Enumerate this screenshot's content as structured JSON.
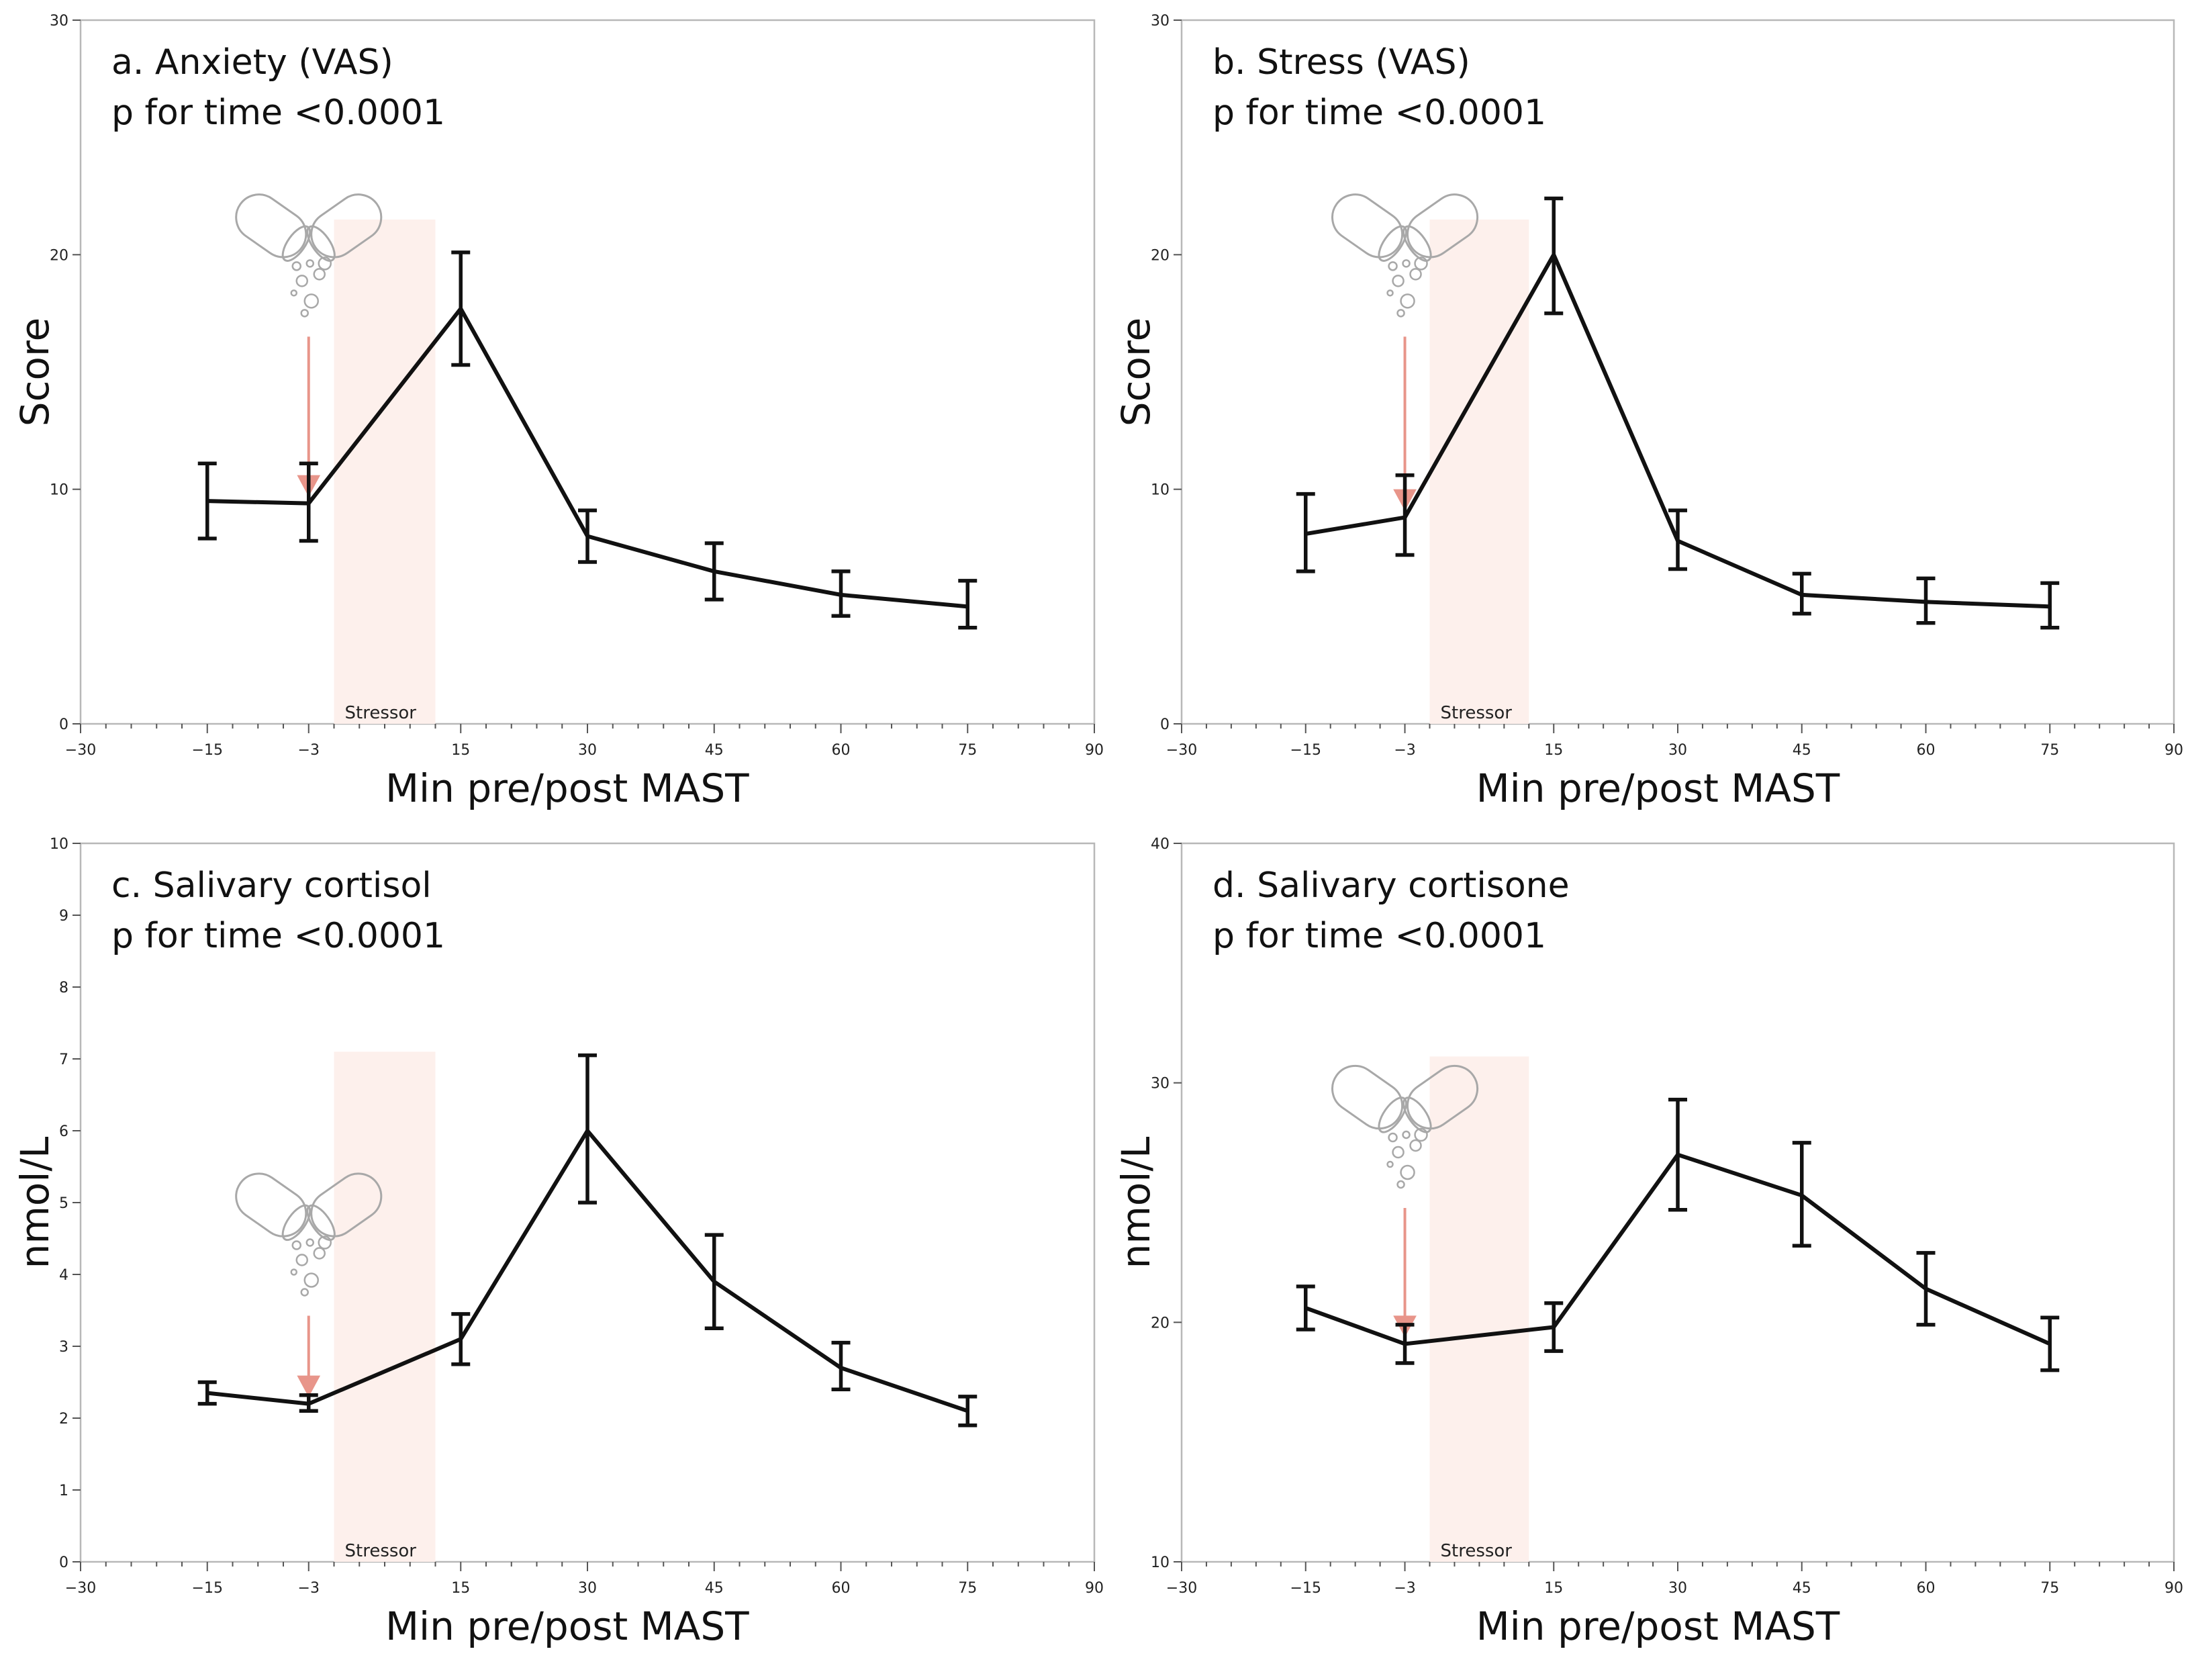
{
  "chart_data": [
    {
      "type": "line",
      "title": "a. Anxiety (VAS)",
      "subtitle": "p for time <0.0001",
      "xlabel": "Min pre/post MAST",
      "ylabel": "Score",
      "xlim": [
        -30,
        90
      ],
      "ylim": [
        0,
        30
      ],
      "xticks": [
        -30,
        -15,
        -3,
        15,
        30,
        45,
        60,
        75,
        90
      ],
      "xtick_labels": [
        "−30",
        "−15",
        "−3",
        "15",
        "30",
        "45",
        "60",
        "75",
        "90"
      ],
      "yticks": [
        0,
        10,
        20,
        30
      ],
      "ytick_labels": [
        "0",
        "10",
        "20",
        "30"
      ],
      "stressor": {
        "label": "Stressor",
        "x_start": 0,
        "x_end": 12,
        "y_top": 21.5
      },
      "intake_marker": {
        "x": -3
      },
      "x": [
        -15,
        -3,
        15,
        30,
        45,
        60,
        75
      ],
      "values": [
        9.5,
        9.4,
        17.7,
        8.0,
        6.5,
        5.5,
        5.0
      ],
      "err_low": [
        7.9,
        7.8,
        15.3,
        6.9,
        5.3,
        4.6,
        4.1
      ],
      "err_high": [
        11.1,
        11.1,
        20.1,
        9.1,
        7.7,
        6.5,
        6.1
      ]
    },
    {
      "type": "line",
      "title": "b. Stress (VAS)",
      "subtitle": "p for time <0.0001",
      "xlabel": "Min pre/post MAST",
      "ylabel": "Score",
      "xlim": [
        -30,
        90
      ],
      "ylim": [
        0,
        30
      ],
      "xticks": [
        -30,
        -15,
        -3,
        15,
        30,
        45,
        60,
        75,
        90
      ],
      "xtick_labels": [
        "−30",
        "−15",
        "−3",
        "15",
        "30",
        "45",
        "60",
        "75",
        "90"
      ],
      "yticks": [
        0,
        10,
        20,
        30
      ],
      "ytick_labels": [
        "0",
        "10",
        "20",
        "30"
      ],
      "stressor": {
        "label": "Stressor",
        "x_start": 0,
        "x_end": 12,
        "y_top": 21.5
      },
      "intake_marker": {
        "x": -3
      },
      "x": [
        -15,
        -3,
        15,
        30,
        45,
        60,
        75
      ],
      "values": [
        8.1,
        8.8,
        20.0,
        7.8,
        5.5,
        5.2,
        5.0
      ],
      "err_low": [
        6.5,
        7.2,
        17.5,
        6.6,
        4.7,
        4.3,
        4.1
      ],
      "err_high": [
        9.8,
        10.6,
        22.4,
        9.1,
        6.4,
        6.2,
        6.0
      ]
    },
    {
      "type": "line",
      "title": "c. Salivary cortisol",
      "subtitle": "p for time <0.0001",
      "xlabel": "Min pre/post MAST",
      "ylabel": "nmol/L",
      "xlim": [
        -30,
        90
      ],
      "ylim": [
        0,
        10
      ],
      "xticks": [
        -30,
        -15,
        -3,
        15,
        30,
        45,
        60,
        75,
        90
      ],
      "xtick_labels": [
        "−30",
        "−15",
        "−3",
        "15",
        "30",
        "45",
        "60",
        "75",
        "90"
      ],
      "yticks": [
        0,
        1,
        2,
        3,
        4,
        5,
        6,
        7,
        8,
        9,
        10
      ],
      "ytick_labels": [
        "0",
        "1",
        "2",
        "3",
        "4",
        "5",
        "6",
        "7",
        "8",
        "9",
        "10"
      ],
      "stressor": {
        "label": "Stressor",
        "x_start": 0,
        "x_end": 12,
        "y_top": 7.1
      },
      "intake_marker": {
        "x": -3
      },
      "x": [
        -15,
        -3,
        15,
        30,
        45,
        60,
        75
      ],
      "values": [
        2.35,
        2.2,
        3.1,
        6.0,
        3.9,
        2.7,
        2.1
      ],
      "err_low": [
        2.2,
        2.1,
        2.75,
        5.0,
        3.25,
        2.4,
        1.9
      ],
      "err_high": [
        2.5,
        2.32,
        3.45,
        7.05,
        4.55,
        3.05,
        2.3
      ]
    },
    {
      "type": "line",
      "title": "d. Salivary cortisone",
      "subtitle": "p for time <0.0001",
      "xlabel": "Min pre/post MAST",
      "ylabel": "nmol/L",
      "xlim": [
        -30,
        90
      ],
      "ylim": [
        10,
        40
      ],
      "xticks": [
        -30,
        -15,
        -3,
        15,
        30,
        45,
        60,
        75,
        90
      ],
      "xtick_labels": [
        "−30",
        "−15",
        "−3",
        "15",
        "30",
        "45",
        "60",
        "75",
        "90"
      ],
      "yticks": [
        10,
        20,
        30,
        40
      ],
      "ytick_labels": [
        "10",
        "20",
        "30",
        "40"
      ],
      "stressor": {
        "label": "Stressor",
        "x_start": 0,
        "x_end": 12,
        "y_top": 31.1
      },
      "intake_marker": {
        "x": -3
      },
      "x": [
        -15,
        -3,
        15,
        30,
        45,
        60,
        75
      ],
      "values": [
        20.6,
        19.1,
        19.8,
        27.0,
        25.3,
        21.4,
        19.1
      ],
      "err_low": [
        19.7,
        18.3,
        18.8,
        24.7,
        23.2,
        19.9,
        18.0
      ],
      "err_high": [
        21.5,
        19.9,
        20.8,
        29.3,
        27.5,
        22.9,
        20.2
      ]
    }
  ],
  "icons": {
    "capsule": "capsule-icon",
    "arrow": "arrow-down-icon"
  },
  "colors": {
    "line": "#111111",
    "stressor_band": "#fdf0ec",
    "arrow": "#e8958a",
    "frame": "#b8b8b8"
  }
}
